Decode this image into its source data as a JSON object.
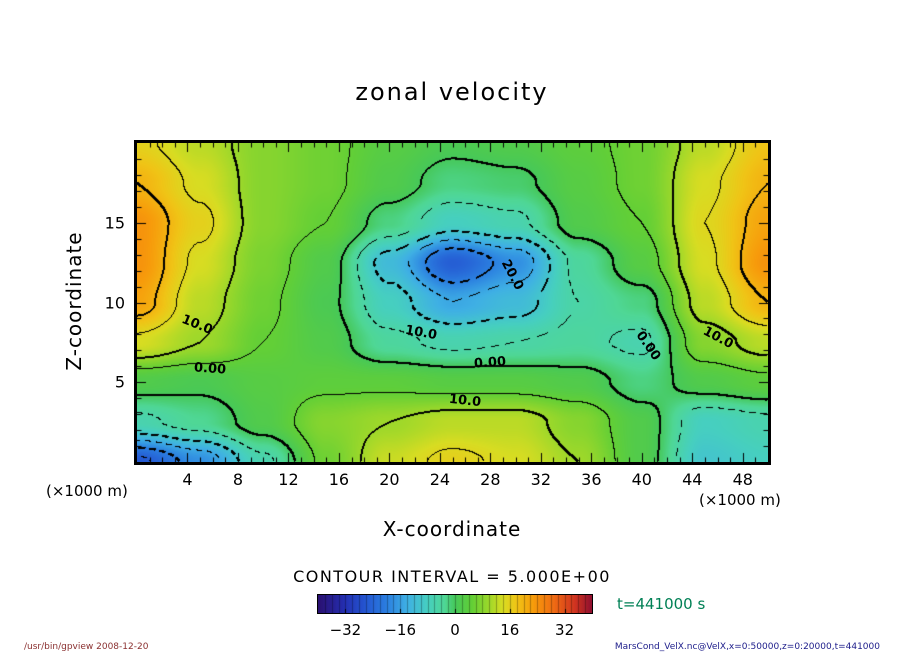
{
  "chart_data": {
    "type": "heatmap",
    "title": "zonal velocity",
    "xlabel": "X-coordinate",
    "ylabel": "Z-coordinate",
    "x_unit": "(×1000 m)",
    "xlim": [
      0,
      50
    ],
    "zlim": [
      0,
      20
    ],
    "x_ticks": [
      4,
      8,
      12,
      16,
      20,
      24,
      28,
      32,
      36,
      40,
      44,
      48
    ],
    "z_ticks": [
      5,
      10,
      15
    ],
    "x_minor_tick_step": 1,
    "z_minor_tick_step": 1,
    "contour_interval": 5,
    "contour_interval_label": "CONTOUR INTERVAL = 5.000E+00",
    "contour_style": "solid for levels >= 0, dashed for levels < 0, thick every 10",
    "x": [
      0,
      5,
      10,
      15,
      20,
      25,
      30,
      35,
      40,
      45,
      50
    ],
    "z": [
      0,
      2.5,
      5,
      7.5,
      10,
      12.5,
      15,
      17.5,
      20
    ],
    "values": [
      [
        -26,
        -18,
        -6,
        6,
        13,
        16,
        14,
        10,
        2,
        -10,
        -8
      ],
      [
        -6,
        -3,
        2,
        8,
        10,
        12,
        12,
        8,
        2,
        -8,
        -6
      ],
      [
        2,
        1,
        3,
        4,
        4,
        3,
        3,
        2,
        -2,
        2,
        4
      ],
      [
        14,
        10,
        5,
        2,
        -4,
        -6,
        -5,
        -4,
        -6,
        8,
        12
      ],
      [
        22,
        12,
        6,
        1,
        -8,
        -15,
        -12,
        -5,
        -2,
        12,
        20
      ],
      [
        24,
        14,
        7,
        2,
        -12,
        -25,
        -18,
        -4,
        3,
        14,
        24
      ],
      [
        24,
        16,
        8,
        5,
        -2,
        -8,
        -6,
        2,
        5,
        15,
        22
      ],
      [
        20,
        14,
        8,
        6,
        2,
        -2,
        -1,
        3,
        6,
        14,
        20
      ],
      [
        16,
        12,
        8,
        6,
        3,
        1,
        2,
        4,
        6,
        12,
        18
      ]
    ],
    "colormap": [
      [
        -40,
        "#2a1070"
      ],
      [
        -32,
        "#2430b4"
      ],
      [
        -26,
        "#2458d2"
      ],
      [
        -20,
        "#2b7fe0"
      ],
      [
        -14,
        "#3fb0e4"
      ],
      [
        -8,
        "#46cfc0"
      ],
      [
        -3,
        "#4fd795"
      ],
      [
        0,
        "#46c85a"
      ],
      [
        5,
        "#63cf36"
      ],
      [
        10,
        "#9ed82a"
      ],
      [
        14,
        "#d8dc22"
      ],
      [
        18,
        "#f0c416"
      ],
      [
        23,
        "#f79b0b"
      ],
      [
        29,
        "#ef6a14"
      ],
      [
        35,
        "#d03420"
      ],
      [
        40,
        "#8f1030"
      ]
    ],
    "colorbar": {
      "range": [
        -40,
        40
      ],
      "ticks": [
        -32,
        -16,
        0,
        16,
        32
      ]
    },
    "contour_labels": [
      {
        "text": "10.0",
        "x": 9.5,
        "y": 57,
        "rot": 22
      },
      {
        "text": "0.00",
        "x": 11.5,
        "y": 71,
        "rot": 4
      },
      {
        "text": "10.0",
        "x": 45,
        "y": 59.5,
        "rot": 10
      },
      {
        "text": "0.00",
        "x": 56,
        "y": 69,
        "rot": -4
      },
      {
        "text": "10.0",
        "x": 52,
        "y": 81,
        "rot": 6
      },
      {
        "text": "20.0",
        "x": 59.5,
        "y": 41.5,
        "rot": 62
      },
      {
        "text": "0.00",
        "x": 81,
        "y": 63.5,
        "rot": 55
      },
      {
        "text": "10.0",
        "x": 92,
        "y": 61,
        "rot": 28
      }
    ],
    "time_label": "t=441000 s"
  },
  "footer": {
    "left": "/usr/bin/gpview  2008-12-20",
    "right": "MarsCond_VelX.nc@VelX,x=0:50000,z=0:20000,t=441000"
  },
  "colors": {
    "time_label": "#008055",
    "footer_left": "#8a3030",
    "footer_right": "#20208c",
    "frame": "#000000"
  }
}
